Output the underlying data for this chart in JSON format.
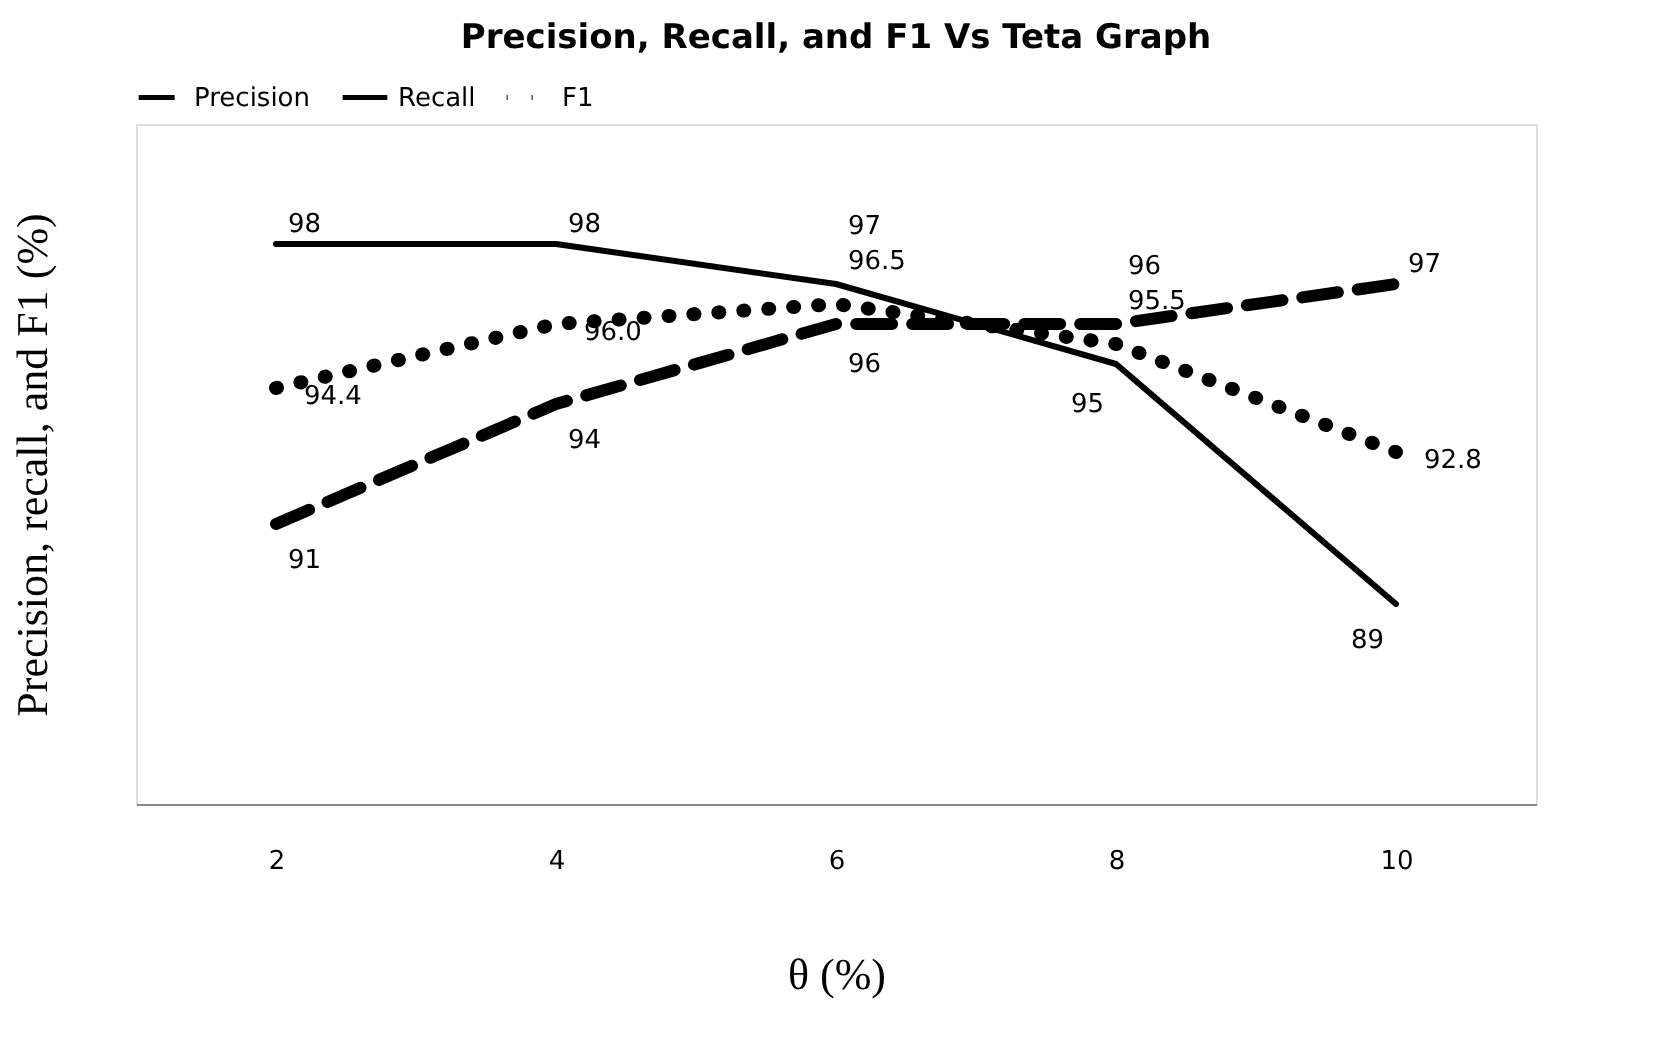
{
  "chart_data": {
    "type": "line",
    "title": "Precision, Recall, and F1 Vs Teta Graph",
    "xlabel": "θ (%)",
    "ylabel": "Precision, recall, and F1 (%)",
    "categories": [
      "2",
      "4",
      "6",
      "8",
      "10"
    ],
    "series": [
      {
        "name": "Precision",
        "color": "#000000",
        "line_style": "dashed",
        "values": [
          91,
          94,
          96,
          96,
          97
        ],
        "value_labels": [
          "91",
          "94",
          "96",
          "96",
          "97"
        ]
      },
      {
        "name": "Recall",
        "color": "#000000",
        "line_style": "solid",
        "values": [
          98,
          98,
          97,
          95,
          89
        ],
        "value_labels": [
          "98",
          "98",
          "97",
          "95",
          "89"
        ]
      },
      {
        "name": "F1",
        "color": "#000000",
        "line_style": "dotted",
        "values": [
          94.4,
          96.0,
          96.5,
          95.5,
          92.8
        ],
        "value_labels": [
          "94.4",
          "96.0",
          "96.5",
          "95.5",
          "92.8"
        ]
      }
    ],
    "ylim": [
      84,
      101
    ],
    "tick_labels": "x",
    "grid": false,
    "legend": "top",
    "marker": "none"
  }
}
